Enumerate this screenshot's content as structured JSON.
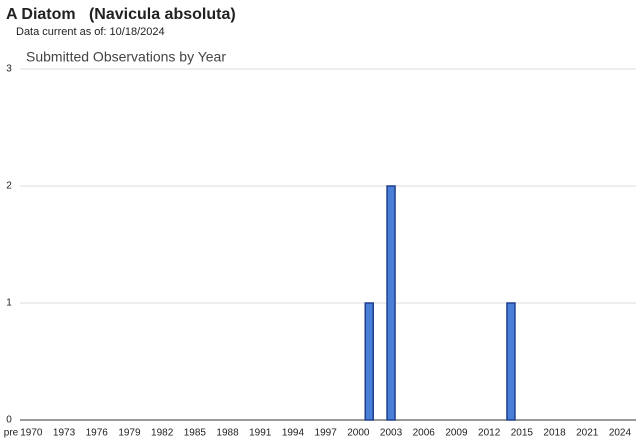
{
  "header": {
    "title": "A Diatom   (Navicula absoluta)",
    "subtitle": "Data current as of: 10/18/2024"
  },
  "chart_data": {
    "type": "bar",
    "title": "Submitted Observations by Year",
    "categories": [
      "pre",
      "1970",
      null,
      null,
      "1973",
      null,
      null,
      "1976",
      null,
      null,
      "1979",
      null,
      null,
      "1982",
      null,
      null,
      "1985",
      null,
      null,
      "1988",
      null,
      null,
      "1991",
      null,
      null,
      "1994",
      null,
      null,
      "1997",
      null,
      null,
      "2000",
      null,
      null,
      "2003",
      null,
      null,
      "2006",
      null,
      null,
      "2009",
      null,
      null,
      "2012",
      null,
      null,
      "2015",
      null,
      null,
      "2018",
      null,
      null,
      "2021",
      null,
      null,
      "2024"
    ],
    "values": [
      0,
      0,
      0,
      0,
      0,
      0,
      0,
      0,
      0,
      0,
      0,
      0,
      0,
      0,
      0,
      0,
      0,
      0,
      0,
      0,
      0,
      0,
      0,
      0,
      0,
      0,
      0,
      0,
      0,
      0,
      0,
      0,
      1,
      0,
      2,
      0,
      0,
      0,
      0,
      0,
      0,
      0,
      0,
      0,
      0,
      1,
      0,
      0,
      0,
      0,
      0,
      0,
      0,
      0,
      0,
      0
    ],
    "color": "#4a7fd8",
    "ylim": [
      0,
      3
    ],
    "yticks": [
      0,
      1,
      2,
      3
    ],
    "grid": true
  }
}
